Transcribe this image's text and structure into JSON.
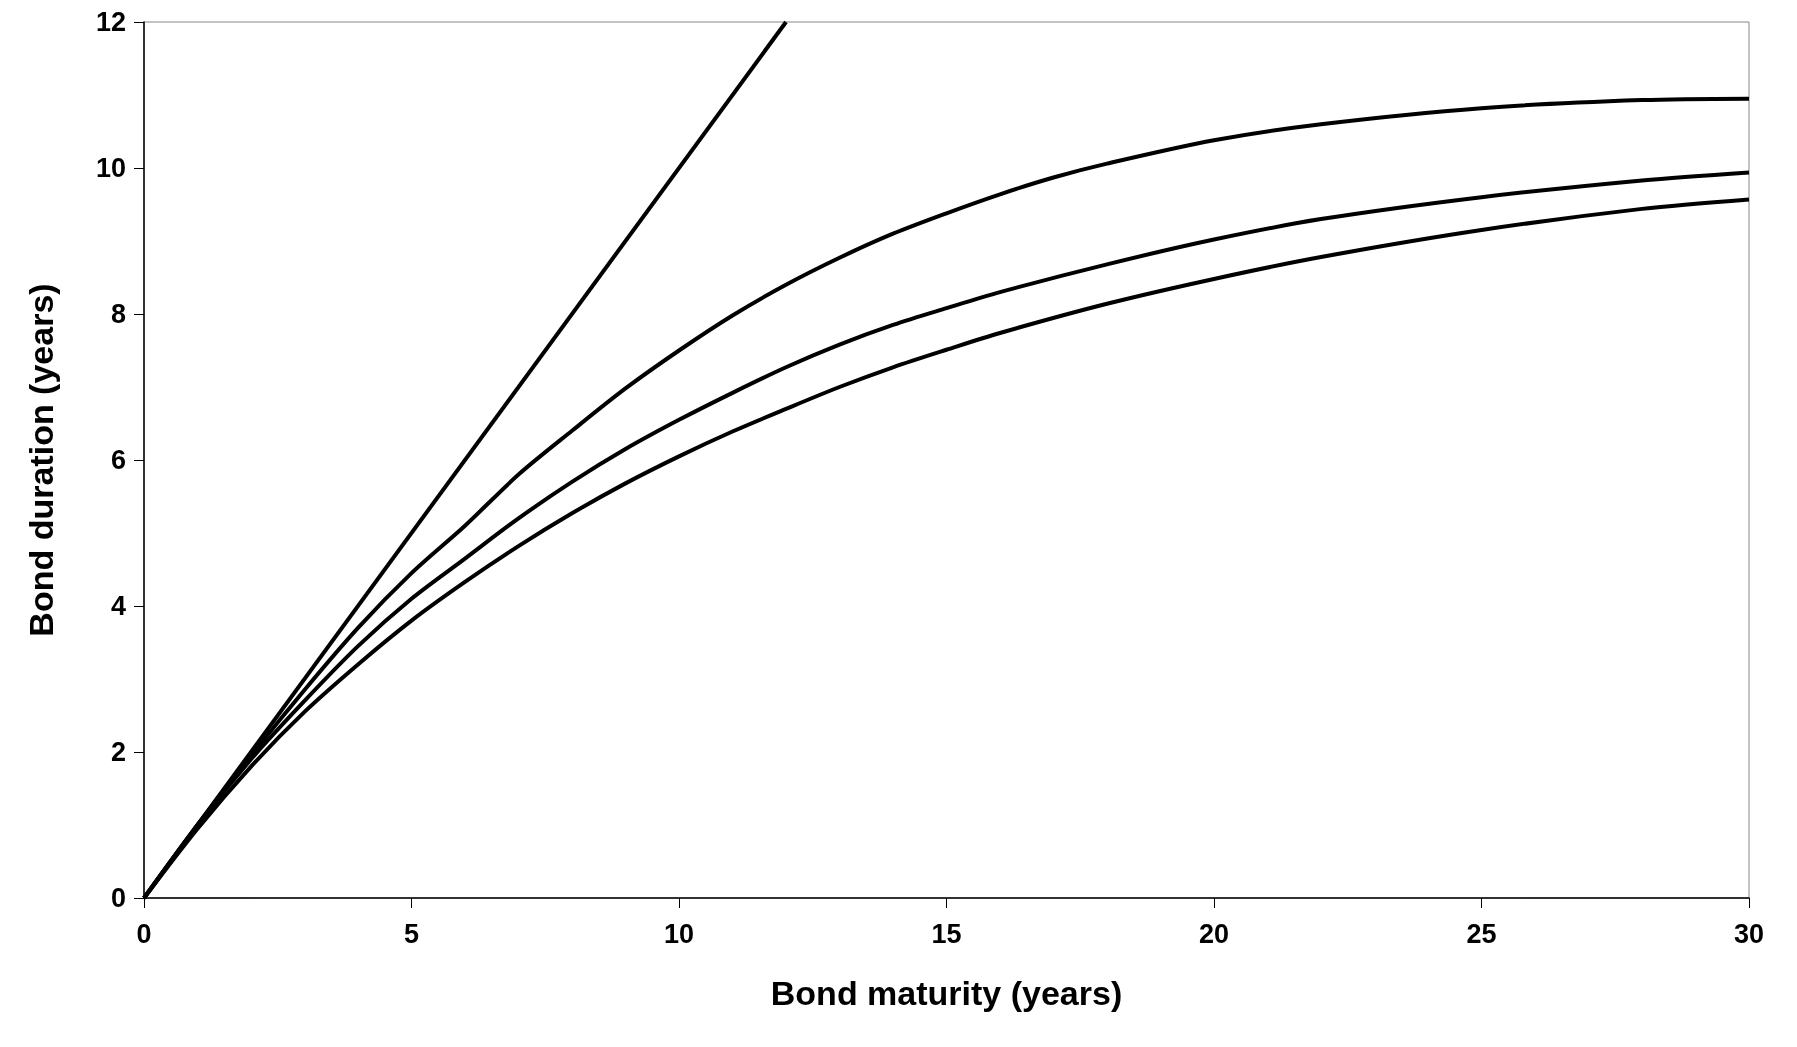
{
  "chart_data": {
    "type": "line",
    "xlabel": "Bond maturity (years)",
    "ylabel": "Bond duration (years)",
    "xlim": [
      0,
      30
    ],
    "xticks": [
      0,
      5,
      10,
      15,
      20,
      25,
      30
    ],
    "ylim": [
      0,
      12
    ],
    "yticks": [
      0,
      2,
      4,
      6,
      8,
      10,
      12
    ],
    "grid": false,
    "marker": "none",
    "line_style": "solid",
    "series": [
      {
        "color": "#000000",
        "x": [
          0,
          12
        ],
        "values": [
          0,
          12
        ]
      },
      {
        "color": "#000000",
        "x": [
          0,
          1,
          2,
          3,
          4,
          5,
          6,
          7,
          8,
          9,
          10,
          11,
          12,
          13,
          14,
          15,
          16,
          17,
          18,
          20,
          22,
          25,
          28,
          30
        ],
        "values": [
          0,
          1,
          1.95,
          2.85,
          3.7,
          4.45,
          5.1,
          5.8,
          6.4,
          6.98,
          7.5,
          7.98,
          8.4,
          8.77,
          9.1,
          9.38,
          9.64,
          9.87,
          10.06,
          10.38,
          10.6,
          10.82,
          10.93,
          10.95
        ]
      },
      {
        "color": "#000000",
        "x": [
          0,
          1,
          2,
          3,
          4,
          5,
          6,
          7,
          8,
          9,
          10,
          11,
          12,
          13,
          14,
          15,
          16,
          18,
          20,
          22,
          25,
          28,
          30
        ],
        "values": [
          0,
          1,
          1.9,
          2.7,
          3.45,
          4.1,
          4.65,
          5.2,
          5.7,
          6.15,
          6.55,
          6.92,
          7.27,
          7.58,
          7.85,
          8.08,
          8.3,
          8.68,
          9.02,
          9.3,
          9.6,
          9.83,
          9.94
        ]
      },
      {
        "color": "#000000",
        "x": [
          0,
          1,
          2,
          3,
          4,
          5,
          6,
          7,
          8,
          9,
          10,
          11,
          12,
          13,
          14,
          15,
          16,
          18,
          20,
          22,
          25,
          28,
          30
        ],
        "values": [
          0,
          0.95,
          1.8,
          2.55,
          3.2,
          3.8,
          4.33,
          4.82,
          5.27,
          5.68,
          6.05,
          6.39,
          6.7,
          7.0,
          7.27,
          7.51,
          7.74,
          8.14,
          8.48,
          8.78,
          9.15,
          9.44,
          9.57
        ]
      }
    ]
  }
}
